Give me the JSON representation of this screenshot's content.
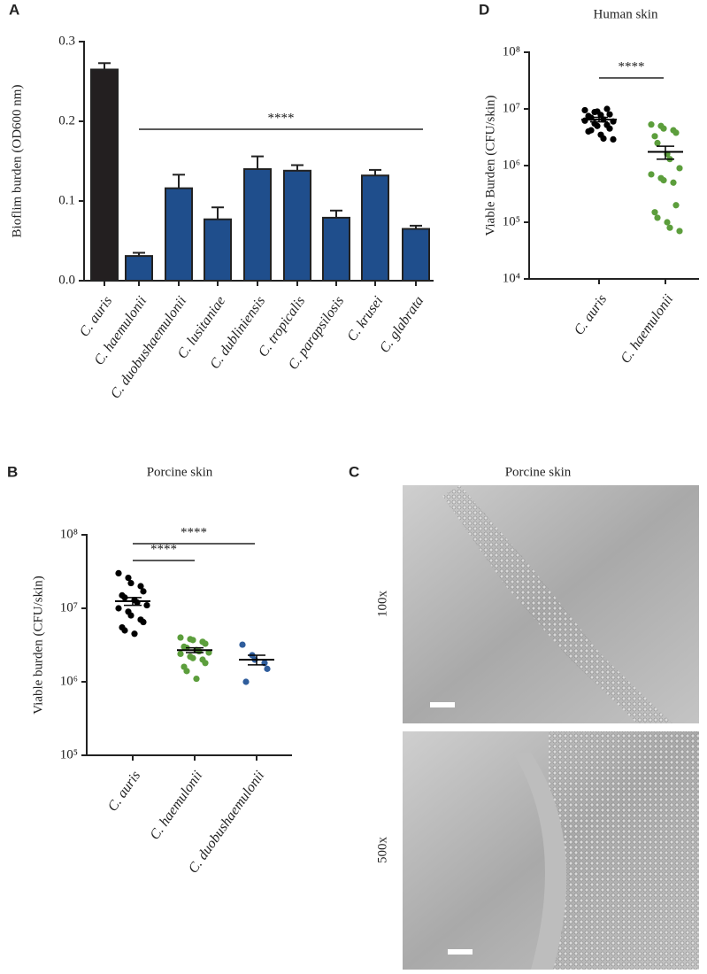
{
  "chart_data": [
    {
      "type": "bar",
      "panel_label": "A",
      "ylabel": "Bioflim burden (OD600 nm)",
      "categories": [
        "C. auris",
        "C. haemulonii",
        "C. duobushaemulonii",
        "C. lusitaniae",
        "C. dubliniensis",
        "C. tropicalis",
        "C. parapsilosis",
        "C. krusei",
        "C. glabrata"
      ],
      "values": [
        0.265,
        0.031,
        0.116,
        0.077,
        0.14,
        0.138,
        0.079,
        0.132,
        0.065
      ],
      "errors": [
        0.008,
        0.004,
        0.017,
        0.015,
        0.016,
        0.007,
        0.009,
        0.007,
        0.004
      ],
      "colors": [
        "#231f20",
        "#1f4e8c",
        "#1f4e8c",
        "#1f4e8c",
        "#1f4e8c",
        "#1f4e8c",
        "#1f4e8c",
        "#1f4e8c",
        "#1f4e8c"
      ],
      "ylim": [
        0,
        0.3
      ],
      "yticks": [
        {
          "value": 0,
          "label": "0.0"
        },
        0.1,
        0.2,
        0.3
      ],
      "annotations": [
        "****"
      ]
    },
    {
      "type": "scatter",
      "panel_label": "D",
      "title": "Human skin",
      "ylabel": "Viable Burden (CFU/skin)",
      "log_scale": true,
      "categories": [
        "C. auris",
        "C. haemulonii"
      ],
      "groups": [
        {
          "color": "#000000",
          "values": [
            9500000,
            8800000,
            9000000,
            10000000,
            8000000,
            7500000,
            7000000,
            7800000,
            6500000,
            6000000,
            6200000,
            5500000,
            5000000,
            5200000,
            4500000,
            4000000,
            4200000,
            3500000,
            3000000,
            2900000
          ],
          "mean": 6500000,
          "sem": 600000
        },
        {
          "color": "#5c9e3c",
          "values": [
            5300000,
            5000000,
            4500000,
            4200000,
            3800000,
            3300000,
            2500000,
            1600000,
            1300000,
            900000,
            700000,
            600000,
            550000,
            500000,
            200000,
            150000,
            120000,
            100000,
            80000,
            70000
          ],
          "mean": 1750000,
          "sem": 450000
        }
      ],
      "ylim": [
        10000,
        100000000
      ],
      "yticks": [
        {
          "value": 10000,
          "label": "10⁴"
        },
        {
          "value": 100000,
          "label": "10⁵"
        },
        {
          "value": 1000000,
          "label": "10⁶"
        },
        {
          "value": 10000000,
          "label": "10⁷"
        },
        {
          "value": 100000000,
          "label": "10⁸"
        }
      ],
      "annotations": [
        "****"
      ]
    },
    {
      "type": "scatter",
      "panel_label": "B",
      "title": "Porcine skin",
      "ylabel": "Viable burden (CFU/skin)",
      "log_scale": true,
      "categories": [
        "C. auris",
        "C. haemulonii",
        "C. duobushaemulonii"
      ],
      "groups": [
        {
          "color": "#000000",
          "values": [
            30000000,
            26000000,
            22000000,
            20000000,
            17000000,
            15000000,
            14000000,
            13000000,
            12000000,
            11000000,
            10000000,
            9000000,
            8000000,
            7000000,
            6500000,
            5500000,
            5000000,
            4500000
          ],
          "mean": 12500000,
          "sem": 1500000
        },
        {
          "color": "#5c9e3c",
          "values": [
            4000000,
            3800000,
            3700000,
            3500000,
            3300000,
            3000000,
            2900000,
            2700000,
            2600000,
            2500000,
            2400000,
            2200000,
            2100000,
            2000000,
            1800000,
            1600000,
            1400000,
            1100000
          ],
          "mean": 2700000,
          "sem": 200000
        },
        {
          "color": "#2f5d9c",
          "values": [
            3200000,
            2300000,
            2000000,
            1800000,
            1500000,
            1000000
          ],
          "mean": 2000000,
          "sem": 300000
        }
      ],
      "ylim": [
        100000,
        100000000
      ],
      "yticks": [
        {
          "value": 100000,
          "label": "10⁵"
        },
        {
          "value": 1000000,
          "label": "10⁶"
        },
        {
          "value": 10000000,
          "label": "10⁷"
        },
        {
          "value": 100000000,
          "label": "10⁸"
        }
      ],
      "annotations": [
        "****",
        "****"
      ]
    }
  ],
  "panel_c": {
    "panel_label": "C",
    "title": "Porcine skin",
    "images": [
      {
        "label": "100x"
      },
      {
        "label": "500x"
      }
    ]
  }
}
